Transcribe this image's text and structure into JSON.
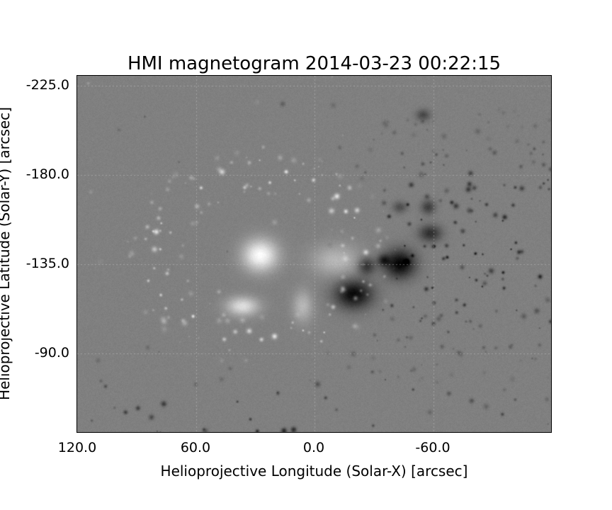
{
  "title": "HMI magnetogram 2014-03-23 00:22:15",
  "xlabel": "Helioprojective Longitude (Solar-X) [arcsec]",
  "ylabel": "Helioprojective Latitude (Solar-Y) [arcsec]",
  "x_ticks": [
    "120.0",
    "60.0",
    "0.0",
    "-60.0"
  ],
  "y_ticks": [
    "-225.0",
    "-180.0",
    "-135.0",
    "-90.0"
  ],
  "x_tick_values": [
    120.0,
    60.0,
    0.0,
    -60.0
  ],
  "y_tick_values": [
    -225.0,
    -180.0,
    -135.0,
    -90.0
  ],
  "x_range": [
    120.0,
    -120.0
  ],
  "y_range": [
    -230.0,
    -50.0
  ],
  "colormap": "grayscale",
  "grid": true,
  "colors": {
    "background": "#ffffff",
    "field_neutral": "#808080",
    "positive_polarity": "#ffffff",
    "negative_polarity": "#000000",
    "grid": "#c8c8c8"
  }
}
